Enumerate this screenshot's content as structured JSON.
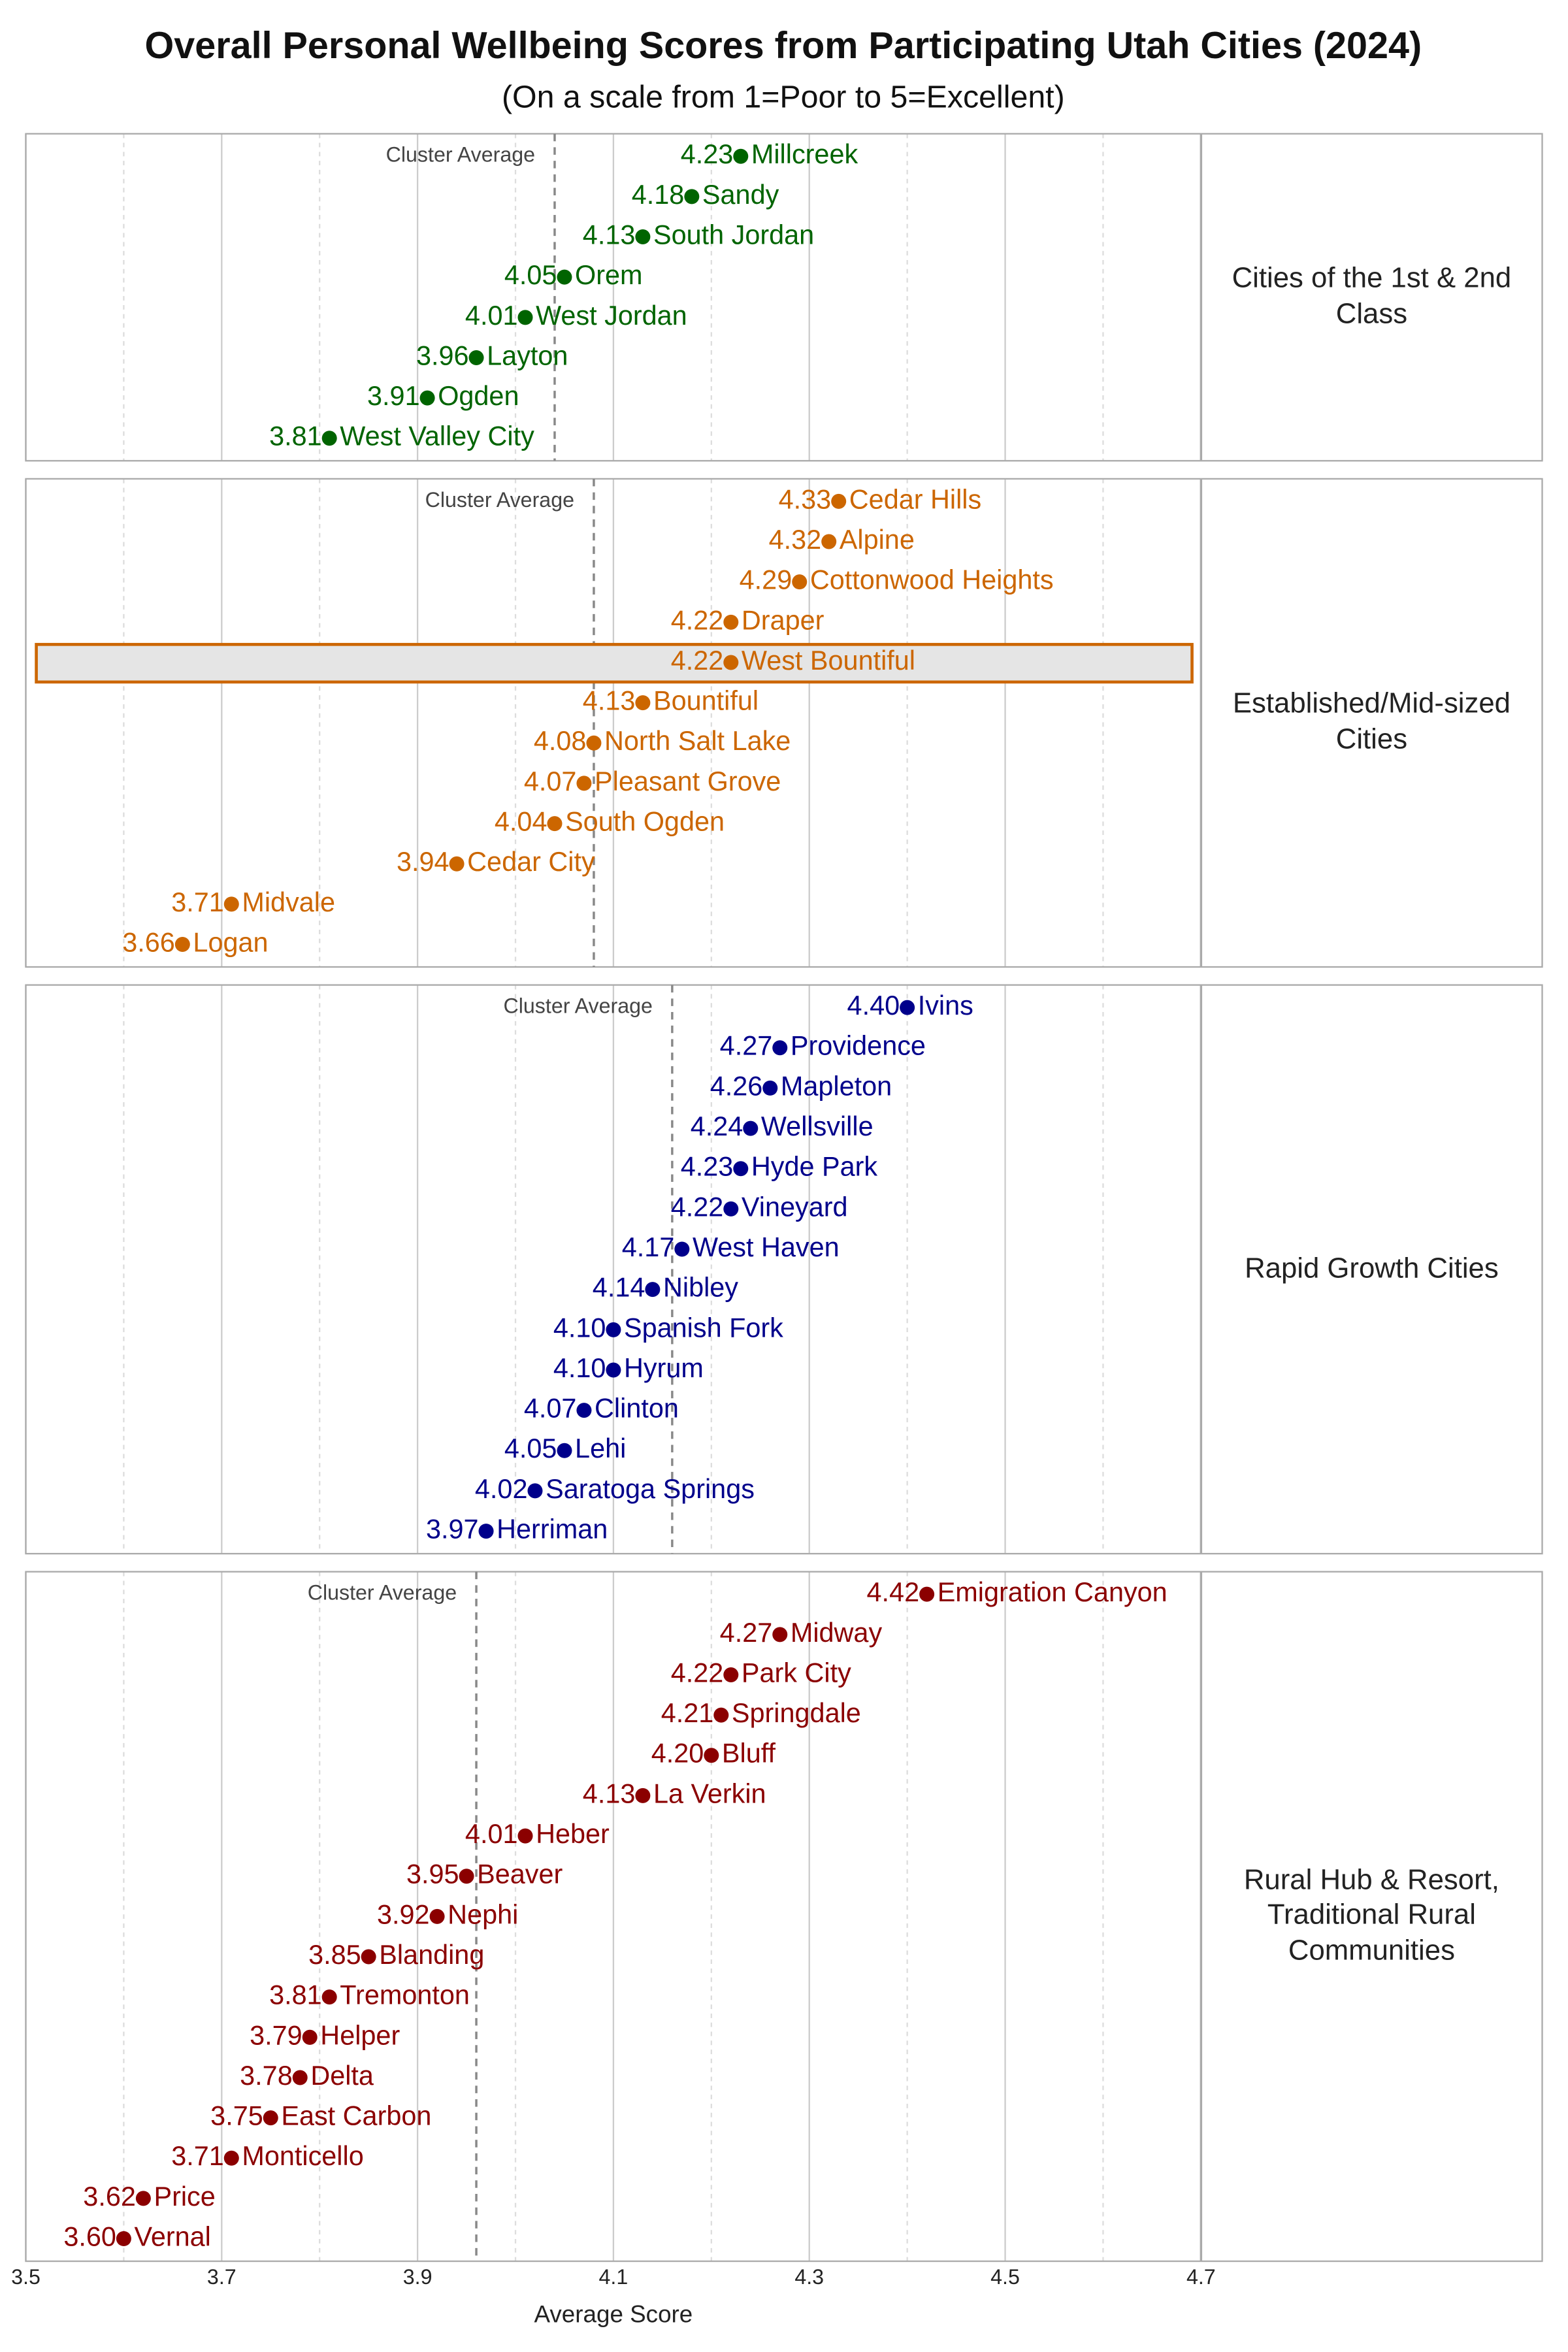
{
  "chart_data": {
    "type": "dot",
    "title": "Overall Personal Wellbeing Scores from Participating Utah Cities (2024)",
    "subtitle": "(On a scale from 1=Poor to 5=Excellent)",
    "x_label": "Average Score",
    "xlim": [
      3.5,
      4.7
    ],
    "xticks": [
      3.5,
      3.7,
      3.9,
      4.1,
      4.3,
      4.5,
      4.7
    ],
    "minor_xticks": [
      3.6,
      3.8,
      4.0,
      4.2,
      4.4,
      4.6
    ],
    "grid": true,
    "average_label": "Cluster Average",
    "panels": [
      {
        "name": "Cities of the 1st & 2nd Class",
        "color": "#006400",
        "average": 4.04,
        "categories": [
          "Millcreek",
          "Sandy",
          "South Jordan",
          "Orem",
          "West Jordan",
          "Layton",
          "Ogden",
          "West Valley City"
        ],
        "values": [
          4.23,
          4.18,
          4.13,
          4.05,
          4.01,
          3.96,
          3.91,
          3.81
        ],
        "value_labels": [
          "4.23",
          "4.18",
          "4.13",
          "4.05",
          "4.01",
          "3.96",
          "3.91",
          "3.81"
        ]
      },
      {
        "name": "Established/Mid-sized Cities",
        "color": "#cc6600",
        "average": 4.08,
        "highlight": 4,
        "categories": [
          "Cedar Hills",
          "Alpine",
          "Cottonwood Heights",
          "Draper",
          "West Bountiful",
          "Bountiful",
          "North Salt Lake",
          "Pleasant Grove",
          "South Ogden",
          "Cedar City",
          "Midvale",
          "Logan"
        ],
        "values": [
          4.33,
          4.32,
          4.29,
          4.22,
          4.22,
          4.13,
          4.08,
          4.07,
          4.04,
          3.94,
          3.71,
          3.66
        ],
        "value_labels": [
          "4.33",
          "4.32",
          "4.29",
          "4.22",
          "4.22",
          "4.13",
          "4.08",
          "4.07",
          "4.04",
          "3.94",
          "3.71",
          "3.66"
        ]
      },
      {
        "name": "Rapid Growth Cities",
        "color": "#00008b",
        "average": 4.16,
        "categories": [
          "Ivins",
          "Providence",
          "Mapleton",
          "Wellsville",
          "Hyde Park",
          "Vineyard",
          "West Haven",
          "Nibley",
          "Spanish Fork",
          "Hyrum",
          "Clinton",
          "Lehi",
          "Saratoga Springs",
          "Herriman"
        ],
        "values": [
          4.4,
          4.27,
          4.26,
          4.24,
          4.23,
          4.22,
          4.17,
          4.14,
          4.1,
          4.1,
          4.07,
          4.05,
          4.02,
          3.97
        ],
        "value_labels": [
          "4.40",
          "4.27",
          "4.26",
          "4.24",
          "4.23",
          "4.22",
          "4.17",
          "4.14",
          "4.10",
          "4.10",
          "4.07",
          "4.05",
          "4.02",
          "3.97"
        ]
      },
      {
        "name": "Rural Hub & Resort, Traditional Rural Communities",
        "color": "#8b0000",
        "average": 3.96,
        "categories": [
          "Emigration Canyon",
          "Midway",
          "Park City",
          "Springdale",
          "Bluff",
          "La Verkin",
          "Heber",
          "Beaver",
          "Nephi",
          "Blanding",
          "Tremonton",
          "Helper",
          "Delta",
          "East Carbon",
          "Monticello",
          "Price",
          "Vernal"
        ],
        "values": [
          4.42,
          4.27,
          4.22,
          4.21,
          4.2,
          4.13,
          4.01,
          3.95,
          3.92,
          3.85,
          3.81,
          3.79,
          3.78,
          3.75,
          3.71,
          3.62,
          3.6
        ],
        "value_labels": [
          "4.42",
          "4.27",
          "4.22",
          "4.21",
          "4.20",
          "4.13",
          "4.01",
          "3.95",
          "3.92",
          "3.85",
          "3.81",
          "3.79",
          "3.78",
          "3.75",
          "3.71",
          "3.62",
          "3.60"
        ]
      }
    ]
  }
}
